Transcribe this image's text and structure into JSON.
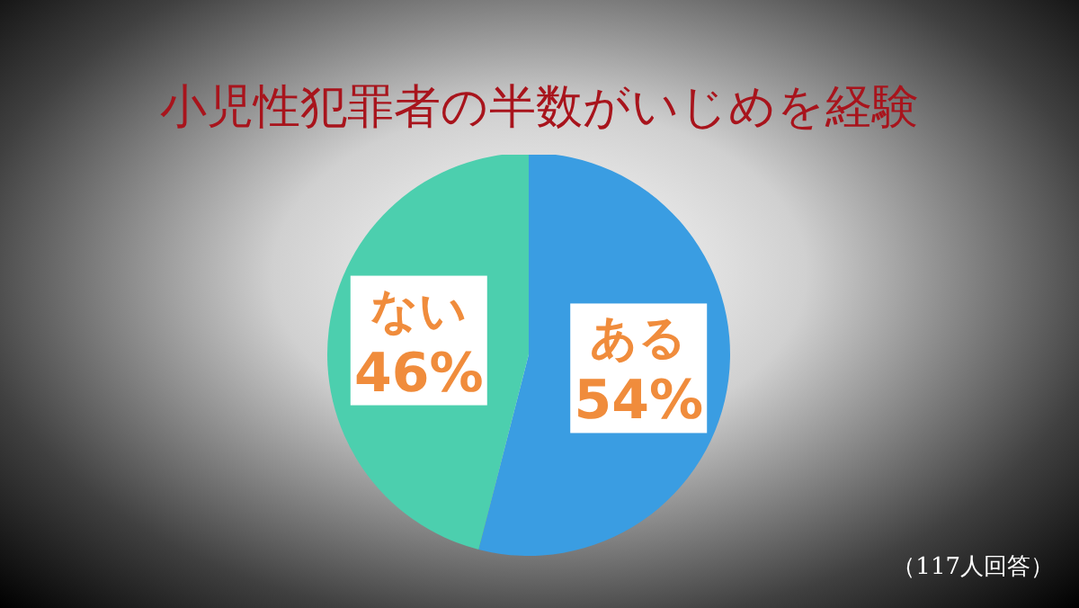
{
  "chart_data": {
    "type": "pie",
    "title": "小児性犯罪者の半数がいじめを経験",
    "categories": [
      "ある",
      "ない"
    ],
    "values": [
      54,
      46
    ],
    "value_labels": [
      "54%",
      "46%"
    ],
    "colors": [
      "#3a9de2",
      "#4ccfae"
    ],
    "annotations": [
      "（117人回答）"
    ]
  }
}
